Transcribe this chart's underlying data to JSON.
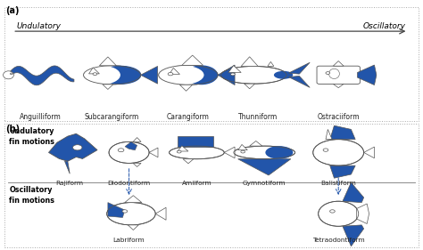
{
  "panel_a_label": "(a)",
  "panel_b_label": "(b)",
  "panel_a_left_label": "Undulatory",
  "panel_a_right_label": "Oscillatory",
  "bcf_labels": [
    "Anguilliform",
    "Subcarangiform",
    "Carangiform",
    "Thunniform",
    "Ostraciiform"
  ],
  "mpf_top_labels": [
    "Rajiform",
    "Diodontiform",
    "Amiiform",
    "Gymnotiform",
    "Balistiform"
  ],
  "mpf_bot_labels": [
    "Labriform",
    "Tetraodontiform"
  ],
  "undulatory_fin_label": "Undulatory\nfin motions",
  "oscillatory_fin_label": "Oscillatory\nfin motions",
  "blue_color": "#2255aa",
  "line_color": "#555555",
  "bg_color": "#ffffff",
  "fig_width": 4.74,
  "fig_height": 2.81,
  "dpi": 100
}
